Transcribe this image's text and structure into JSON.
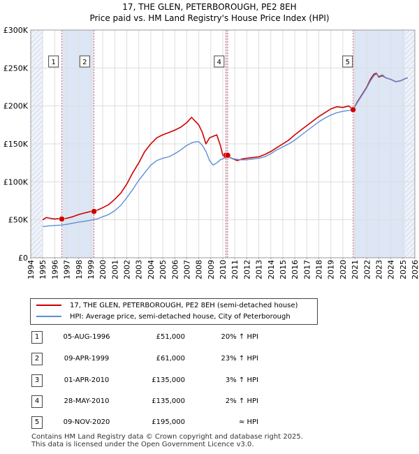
{
  "title": "17, THE GLEN, PETERBOROUGH, PE2 8EH",
  "subtitle": "Price paid vs. HM Land Registry's House Price Index (HPI)",
  "colors": {
    "property": "#cc0000",
    "hpi": "#5b8fd4",
    "shade": "#dde6f5",
    "marker": "#cc0000"
  },
  "chart_data": {
    "type": "line",
    "xlim": [
      1994,
      2026
    ],
    "ylim": [
      0,
      300000
    ],
    "x_ticks": [
      1994,
      1995,
      1996,
      1997,
      1998,
      1999,
      2000,
      2001,
      2002,
      2003,
      2004,
      2005,
      2006,
      2007,
      2008,
      2009,
      2010,
      2011,
      2012,
      2013,
      2014,
      2015,
      2016,
      2017,
      2018,
      2019,
      2020,
      2021,
      2022,
      2023,
      2024,
      2025,
      2026
    ],
    "y_ticks": [
      {
        "value": 0,
        "label": "£0"
      },
      {
        "value": 50000,
        "label": "£50K"
      },
      {
        "value": 100000,
        "label": "£100K"
      },
      {
        "value": 150000,
        "label": "£150K"
      },
      {
        "value": 200000,
        "label": "£200K"
      },
      {
        "value": 250000,
        "label": "£250K"
      },
      {
        "value": 300000,
        "label": "£300K"
      }
    ],
    "grid": true,
    "series": [
      {
        "name": "17, THE GLEN, PETERBOROUGH, PE2 8EH (semi-detached house)",
        "key": "property",
        "x": [
          1995.0,
          1995.3,
          1995.6,
          1996.0,
          1996.3,
          1996.6,
          1997.0,
          1997.5,
          1998.0,
          1998.5,
          1999.0,
          1999.27,
          1999.6,
          2000.0,
          2000.5,
          2001.0,
          2001.5,
          2002.0,
          2002.5,
          2003.0,
          2003.5,
          2004.0,
          2004.5,
          2005.0,
          2005.5,
          2006.0,
          2006.5,
          2007.0,
          2007.4,
          2007.7,
          2008.0,
          2008.3,
          2008.6,
          2008.9,
          2009.2,
          2009.5,
          2009.8,
          2010.0,
          2010.25,
          2010.41,
          2010.6,
          2010.9,
          2011.2,
          2011.6,
          2012.0,
          2012.5,
          2013.0,
          2013.5,
          2014.0,
          2014.5,
          2015.0,
          2015.5,
          2016.0,
          2016.5,
          2017.0,
          2017.5,
          2018.0,
          2018.5,
          2019.0,
          2019.5,
          2020.0,
          2020.5,
          2020.86,
          2021.2,
          2021.6,
          2022.0,
          2022.3,
          2022.6,
          2022.8,
          2023.0,
          2023.3,
          2023.6,
          2024.0,
          2024.4,
          2024.8,
          2025.2,
          2025.4
        ],
        "y": [
          50000,
          53000,
          52000,
          51000,
          51500,
          51000,
          52000,
          54000,
          57000,
          59000,
          61000,
          61000,
          63000,
          66000,
          70000,
          77000,
          85000,
          97000,
          112000,
          125000,
          140000,
          150000,
          158000,
          162000,
          165000,
          168000,
          172000,
          178000,
          185000,
          180000,
          175000,
          165000,
          150000,
          158000,
          160000,
          162000,
          148000,
          135000,
          135000,
          135000,
          132000,
          130000,
          128000,
          130000,
          131000,
          132000,
          133000,
          136000,
          140000,
          145000,
          150000,
          155000,
          162000,
          168000,
          174000,
          180000,
          186000,
          191000,
          196000,
          199000,
          198000,
          200000,
          195000,
          205000,
          215000,
          225000,
          235000,
          242000,
          243000,
          238000,
          240000,
          237000,
          235000,
          232000,
          233000,
          236000,
          237000
        ],
        "markers": [
          {
            "x": 1996.59,
            "y": 51000
          },
          {
            "x": 1999.27,
            "y": 61000
          },
          {
            "x": 2010.25,
            "y": 135000
          },
          {
            "x": 2010.41,
            "y": 135000
          },
          {
            "x": 2020.86,
            "y": 195000
          }
        ]
      },
      {
        "name": "HPI: Average price, semi-detached house, City of Peterborough",
        "key": "hpi",
        "x": [
          1995.0,
          1995.5,
          1996.0,
          1996.5,
          1997.0,
          1997.5,
          1998.0,
          1998.5,
          1999.0,
          1999.5,
          2000.0,
          2000.5,
          2001.0,
          2001.5,
          2002.0,
          2002.5,
          2003.0,
          2003.5,
          2004.0,
          2004.5,
          2005.0,
          2005.5,
          2006.0,
          2006.5,
          2007.0,
          2007.5,
          2008.0,
          2008.3,
          2008.6,
          2008.9,
          2009.2,
          2009.5,
          2009.8,
          2010.1,
          2010.5,
          2011.0,
          2011.5,
          2012.0,
          2012.5,
          2013.0,
          2013.5,
          2014.0,
          2014.5,
          2015.0,
          2015.5,
          2016.0,
          2016.5,
          2017.0,
          2017.5,
          2018.0,
          2018.5,
          2019.0,
          2019.5,
          2020.0,
          2020.5,
          2020.86,
          2021.2,
          2021.6,
          2022.0,
          2022.3,
          2022.6,
          2022.8,
          2023.0,
          2023.3,
          2023.6,
          2024.0,
          2024.4,
          2024.8,
          2025.2,
          2025.4
        ],
        "y": [
          41000,
          42000,
          42500,
          43000,
          44000,
          45500,
          47000,
          48000,
          49500,
          51000,
          54000,
          57000,
          62000,
          69000,
          79000,
          90000,
          102000,
          112000,
          122000,
          128000,
          131000,
          133000,
          137000,
          142000,
          148000,
          152000,
          153000,
          148000,
          140000,
          128000,
          122000,
          125000,
          129000,
          131000,
          132000,
          130000,
          129000,
          129000,
          130000,
          131000,
          133000,
          137000,
          142000,
          146000,
          150000,
          155000,
          161000,
          167000,
          173000,
          179000,
          184000,
          188000,
          191000,
          193000,
          194000,
          195000,
          204000,
          214000,
          224000,
          233000,
          240000,
          242000,
          239000,
          241000,
          237000,
          235000,
          232000,
          233000,
          236000,
          237000
        ]
      }
    ],
    "events": [
      {
        "id": "1",
        "x": 1996.59
      },
      {
        "id": "2",
        "x": 1999.27
      },
      {
        "id": "3",
        "x": 2010.25
      },
      {
        "id": "4",
        "x": 2010.41
      },
      {
        "id": "5",
        "x": 2020.86
      }
    ],
    "shaded_ranges": [
      {
        "from": 1994.0,
        "to": 1995.0,
        "hatched": true
      },
      {
        "from": 1996.59,
        "to": 1999.27,
        "hatched": false
      },
      {
        "from": 2010.25,
        "to": 2010.41,
        "hatched": false
      },
      {
        "from": 2020.86,
        "to": 2025.2,
        "hatched": false
      },
      {
        "from": 2025.2,
        "to": 2026.0,
        "hatched": true
      }
    ],
    "callout_labels": [
      {
        "id": "1",
        "x": 1995.9
      },
      {
        "id": "2",
        "x": 1998.5
      },
      {
        "id": "4",
        "x": 2009.7
      },
      {
        "id": "5",
        "x": 2020.4
      }
    ]
  },
  "legend": {
    "items": [
      {
        "label": "17, THE GLEN, PETERBOROUGH, PE2 8EH (semi-detached house)"
      },
      {
        "label": "HPI: Average price, semi-detached house, City of Peterborough"
      }
    ]
  },
  "transactions": [
    {
      "num": "1",
      "date": "05-AUG-1996",
      "price": "£51,000",
      "hpi": "20% ↑ HPI"
    },
    {
      "num": "2",
      "date": "09-APR-1999",
      "price": "£61,000",
      "hpi": "23% ↑ HPI"
    },
    {
      "num": "3",
      "date": "01-APR-2010",
      "price": "£135,000",
      "hpi": "3% ↑ HPI"
    },
    {
      "num": "4",
      "date": "28-MAY-2010",
      "price": "£135,000",
      "hpi": "2% ↑ HPI"
    },
    {
      "num": "5",
      "date": "09-NOV-2020",
      "price": "£195,000",
      "hpi": "≈ HPI"
    }
  ],
  "footer": {
    "line1": "Contains HM Land Registry data © Crown copyright and database right 2025.",
    "line2": "This data is licensed under the Open Government Licence v3.0."
  }
}
